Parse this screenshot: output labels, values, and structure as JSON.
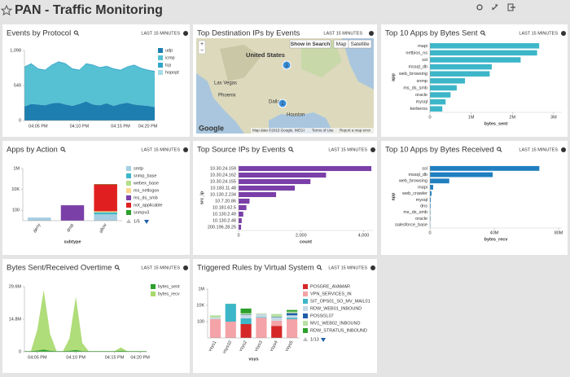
{
  "header": {
    "title": "PAN - Traffic Monitoring"
  },
  "map": {
    "title": "Top Destination IPs by Events",
    "time_range": "LAST 15 MINUTES",
    "buttons": [
      "Show in Search",
      "Map",
      "Satellite"
    ],
    "zoom": [
      "+",
      "−"
    ],
    "labels": [
      "United States",
      "Las Vegas",
      "Phoenix",
      "Dallas",
      "Houston"
    ],
    "markers": [
      "1",
      "1"
    ],
    "footer": [
      "Google",
      "Map data ©2015 Google, INEGI",
      "Terms of Use",
      "Report a map error"
    ]
  },
  "chart_data": [
    {
      "type": "area",
      "title": "Events by Protocol",
      "time_range": "LAST 15 MINUTES",
      "stacked": true,
      "categories": [
        null,
        null,
        "04:05 PM",
        null,
        null,
        null,
        null,
        null,
        "04:10 PM",
        null,
        null,
        null,
        null,
        null,
        "04:15 PM",
        null,
        null,
        null,
        "04:20 PM",
        null
      ],
      "series": [
        {
          "name": "udp",
          "color": "#1d7fb0",
          "values": [
            220,
            260,
            250,
            240,
            270,
            280,
            250,
            230,
            260,
            300,
            250,
            240,
            270,
            230,
            260,
            280,
            250,
            240,
            230,
            210
          ]
        },
        {
          "name": "icmp",
          "color": "#56c1d3",
          "values": [
            610,
            620,
            550,
            540,
            590,
            630,
            630,
            570,
            520,
            580,
            610,
            580,
            570,
            570,
            520,
            550,
            610,
            570,
            550,
            550
          ]
        },
        {
          "name": "tcp",
          "color": "#2fa5c9",
          "values": [
            15,
            15,
            15,
            15,
            15,
            15,
            15,
            15,
            15,
            15,
            15,
            15,
            15,
            15,
            15,
            15,
            15,
            15,
            15,
            15
          ]
        },
        {
          "name": "hopopt",
          "color": "#a8dde8",
          "values": [
            5,
            5,
            5,
            5,
            5,
            5,
            5,
            5,
            5,
            5,
            5,
            5,
            5,
            5,
            5,
            5,
            5,
            5,
            5,
            5
          ]
        }
      ],
      "ylim": [
        0,
        1098
      ],
      "yticks": [
        {
          "value": 1098,
          "label": "1,098"
        },
        549,
        0
      ]
    },
    {
      "type": "bar",
      "horizontal": true,
      "title": "Top 10 Apps by Bytes Sent",
      "time_range": "LAST 15 MINUTES",
      "categories": [
        "mapi",
        "netbios_ns",
        "ssl",
        "mssql_db",
        "web_browsing",
        "snmp",
        "ms_ds_smb",
        "oracle",
        "mysql",
        "kerberos"
      ],
      "values": [
        2650000,
        2600000,
        2200000,
        1500000,
        1450000,
        850000,
        650000,
        500000,
        380000,
        300000
      ],
      "color": "#3cb6c8",
      "x_label": "bytes_sent",
      "y_label": "app",
      "xlim": [
        0,
        3200000
      ],
      "xticks": [
        0,
        {
          "value": 1000000,
          "label": "1M"
        },
        {
          "value": 2000000,
          "label": "2M"
        },
        {
          "value": 3000000,
          "label": "3M"
        }
      ]
    },
    {
      "type": "bar",
      "stacked": true,
      "log_scale": true,
      "title": "Apps by Action",
      "time_range": "LAST 15 MINUTES",
      "categories": [
        "deny",
        "drop",
        "allow"
      ],
      "x_label": "subtype",
      "legend_page": "1/5",
      "series": [
        {
          "name": "smtp",
          "color": "#a6cee3",
          "values": [
            20,
            0,
            40
          ]
        },
        {
          "name": "snmp_base",
          "color": "#3cb6c8",
          "values": [
            0,
            0,
            20
          ]
        },
        {
          "name": "webex_base",
          "color": "#b2df8a",
          "values": [
            0,
            0,
            10
          ]
        },
        {
          "name": "ms_netlogon",
          "color": "#fdd58a",
          "values": [
            0,
            0,
            10
          ]
        },
        {
          "name": "ms_ds_smb",
          "color": "#7b3fa8",
          "values": [
            0,
            300,
            0
          ]
        },
        {
          "name": "not_applicable",
          "color": "#e02020",
          "values": [
            0,
            0,
            30000
          ]
        },
        {
          "name": "snmpv3",
          "color": "#2ca02c",
          "values": [
            0,
            0,
            2000
          ]
        }
      ],
      "ylim": [
        10,
        1000000
      ],
      "yticks": [
        {
          "value": 1000000,
          "label": "1M"
        },
        {
          "value": 10000,
          "label": "10K"
        },
        100
      ]
    },
    {
      "type": "bar",
      "horizontal": true,
      "title": "Top Source IPs by Events",
      "time_range": "LAST 15 MINUTES",
      "categories": [
        "10.30.24.159",
        "10.30.24.162",
        "10.30.24.155",
        "10.183.11.48",
        "10.130.2.234",
        "10.7.20.86",
        "10.181.62.5",
        "10.130.2.49",
        "10.130.2.48",
        "200.196.28.25"
      ],
      "values": [
        4250,
        2800,
        2300,
        1800,
        1200,
        350,
        250,
        150,
        100,
        80
      ],
      "color": "#7a3fa8",
      "x_label": "count",
      "y_label": "src_ip",
      "xlim": [
        0,
        4300
      ],
      "xticks": [
        0,
        {
          "value": 2000,
          "label": "2,000"
        },
        {
          "value": 4000,
          "label": "4,000"
        }
      ]
    },
    {
      "type": "bar",
      "horizontal": true,
      "title": "Top 10 Apps by Bytes Received",
      "time_range": "LAST 15 MINUTES",
      "categories": [
        "ssl",
        "mssql_db",
        "web_browsing",
        "mapi",
        "web_crawler",
        "mysql",
        "dns",
        "ms_ds_smb",
        "oracle",
        "salesforce_base"
      ],
      "values": [
        68000000,
        39000000,
        12000000,
        2000000,
        1000000,
        500000,
        400000,
        300000,
        300000,
        200000
      ],
      "color": "#1f7fc0",
      "x_label": "bytes_recv",
      "y_label": "app",
      "xlim": [
        0,
        82000000
      ],
      "xticks": [
        0,
        {
          "value": 40000000,
          "label": "40M"
        },
        {
          "value": 80000000,
          "label": "80M"
        }
      ]
    },
    {
      "type": "area",
      "title": "Bytes Sent/Received Overtime",
      "time_range": "LAST 15 MINUTES",
      "stacked": false,
      "categories": [
        null,
        null,
        "04:05 PM",
        null,
        null,
        null,
        null,
        null,
        "04:10 PM",
        null,
        null,
        null,
        null,
        null,
        "04:15 PM",
        null,
        null,
        null,
        "04:20 PM",
        null
      ],
      "series": [
        {
          "name": "bytes_sent",
          "color": "#2ca02c",
          "values": [
            300000,
            300000,
            500000,
            1000000,
            400000,
            300000,
            300000,
            400000,
            800000,
            300000,
            300000,
            300000,
            300000,
            300000,
            300000,
            400000,
            300000,
            300000,
            300000,
            300000
          ]
        },
        {
          "name": "bytes_recv",
          "color": "#a6d96a",
          "values": [
            300000,
            300000,
            10000000,
            28000000,
            8000000,
            300000,
            300000,
            6000000,
            25000000,
            4000000,
            300000,
            300000,
            300000,
            300000,
            300000,
            2000000,
            300000,
            300000,
            300000,
            300000
          ]
        }
      ],
      "ylim": [
        0,
        29600000
      ],
      "yticks": [
        {
          "value": 29600000,
          "label": "29.6M"
        },
        {
          "value": 14800000,
          "label": "14.8M"
        },
        0
      ]
    },
    {
      "type": "bar",
      "stacked": true,
      "log_scale": true,
      "title": "Triggered Rules by Virtual System",
      "time_range": "LAST 15 MINUTES",
      "categories": [
        "vsys1",
        "vsys10",
        "vsys2",
        "vsys3",
        "vsys4",
        "vsys5"
      ],
      "x_label": "vsys",
      "legend_page": "1/13",
      "series": [
        {
          "name": "POSGRE_AVAMAR",
          "color": "#d62728",
          "values": [
            0,
            0,
            50,
            0,
            30,
            0
          ]
        },
        {
          "name": "VPN_SERVICES_IN",
          "color": "#f4a3a8",
          "values": [
            200,
            100,
            0,
            300,
            100,
            200
          ]
        },
        {
          "name": "SIT_OPS01_SO_MV_MAIL01",
          "color": "#3cb6c8",
          "values": [
            0,
            15000,
            200,
            50,
            0,
            100
          ]
        },
        {
          "name": "RDW_WEB01_INBOUND",
          "color": "#c6d9e6",
          "values": [
            100,
            0,
            400,
            500,
            200,
            300
          ]
        },
        {
          "name": "POSSGL07",
          "color": "#1f5ea8",
          "values": [
            0,
            0,
            100,
            0,
            50,
            500
          ]
        },
        {
          "name": "MV1_WEB02_INBOUND",
          "color": "#b9e0a5",
          "values": [
            300,
            0,
            300,
            200,
            500,
            600
          ]
        },
        {
          "name": "RDW_STRATUS_INBOUND",
          "color": "#2ca02c",
          "values": [
            0,
            500,
            3000,
            0,
            0,
            1000
          ]
        }
      ],
      "ylim": [
        1,
        1000000
      ],
      "yticks": [
        {
          "value": 1000000,
          "label": "1M"
        },
        {
          "value": 10000,
          "label": "10K"
        },
        100
      ]
    }
  ]
}
